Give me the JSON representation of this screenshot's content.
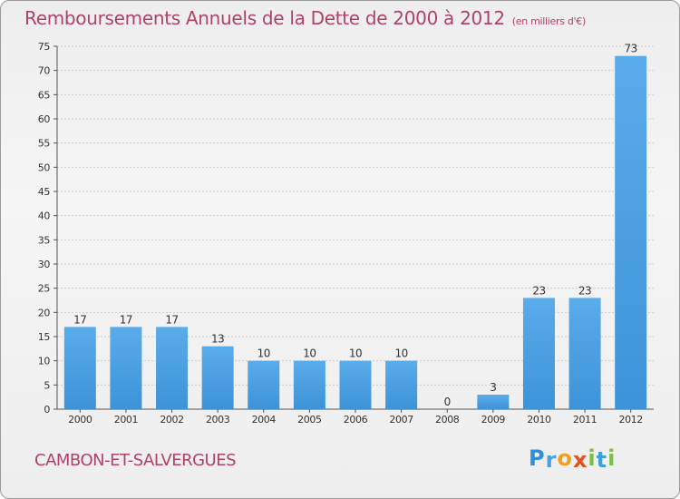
{
  "header": {
    "title": "Remboursements Annuels de la Dette de 2000 à 2012",
    "unit": "(en milliers d'€)"
  },
  "footer": {
    "commune": "CAMBON-ET-SALVERGUES",
    "logo_letters": [
      {
        "ch": "P",
        "color": "#2f8fd8"
      },
      {
        "ch": "r",
        "color": "#4aa0e0"
      },
      {
        "ch": "o",
        "color": "#f0a020"
      },
      {
        "ch": "x",
        "color": "#e05020"
      },
      {
        "ch": "i",
        "color": "#7cc043"
      },
      {
        "ch": "t",
        "color": "#3fa0e0"
      },
      {
        "ch": "i",
        "color": "#7cc043"
      }
    ]
  },
  "colors": {
    "bar": "#3d93d8",
    "bar_light": "#5aacea",
    "title": "#b0426a",
    "grid": "#cccccc"
  },
  "chart_data": {
    "type": "bar",
    "title": "Remboursements Annuels de la Dette de 2000 à 2012",
    "subtitle": "(en milliers d'€)",
    "categories": [
      "2000",
      "2001",
      "2002",
      "2003",
      "2004",
      "2005",
      "2006",
      "2007",
      "2008",
      "2009",
      "2010",
      "2011",
      "2012"
    ],
    "values": [
      17,
      17,
      17,
      13,
      10,
      10,
      10,
      10,
      0,
      3,
      23,
      23,
      73
    ],
    "ylim": [
      0,
      75
    ],
    "yticks": [
      0,
      5,
      10,
      15,
      20,
      25,
      30,
      35,
      40,
      45,
      50,
      55,
      60,
      65,
      70,
      75
    ],
    "grid": true,
    "data_labels": true
  }
}
